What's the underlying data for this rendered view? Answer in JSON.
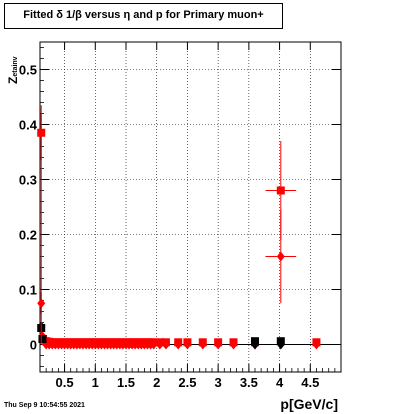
{
  "title": "Fitted δ 1/β versus η and p for Primary muon+",
  "datestamp": "Thu Sep  9 10:54:55 2021",
  "chart_data": {
    "type": "scatter",
    "title": "Fitted δ 1/β versus η and p for Primary muon+",
    "xlabel": "p[GeV/c]",
    "ylabel": "Z",
    "ylabel_subscript": "etainv",
    "xlim": [
      0.1,
      5.0
    ],
    "ylim": [
      -0.05,
      0.55
    ],
    "xticks": [
      0.5,
      1,
      1.5,
      2,
      2.5,
      3,
      3.5,
      4,
      4.5
    ],
    "xtick_labels": [
      "0.5",
      "1",
      "1.5",
      "2",
      "2.5",
      "3",
      "3.5",
      "4",
      "4.5"
    ],
    "yticks": [
      0,
      0.1,
      0.2,
      0.3,
      0.4,
      0.5
    ],
    "ytick_labels": [
      "0",
      "0.1",
      "0.2",
      "0.3",
      "0.4",
      "0.5"
    ],
    "grid": true,
    "colors": {
      "series_red": "#ff0000",
      "series_black": "#000000"
    },
    "series": [
      {
        "marker": "square",
        "color": "#ff0000",
        "points": [
          {
            "x": 0.12,
            "y": 0.385,
            "yerr": 0.05
          },
          {
            "x": 0.15,
            "y": 0.01
          },
          {
            "x": 0.2,
            "y": 0.006
          },
          {
            "x": 0.25,
            "y": 0.005
          },
          {
            "x": 0.3,
            "y": 0.004
          },
          {
            "x": 0.35,
            "y": 0.004
          },
          {
            "x": 0.4,
            "y": 0.004
          },
          {
            "x": 0.45,
            "y": 0.004
          },
          {
            "x": 0.5,
            "y": 0.004
          },
          {
            "x": 0.55,
            "y": 0.004
          },
          {
            "x": 0.6,
            "y": 0.004
          },
          {
            "x": 0.65,
            "y": 0.004
          },
          {
            "x": 0.7,
            "y": 0.004
          },
          {
            "x": 0.75,
            "y": 0.004
          },
          {
            "x": 0.8,
            "y": 0.004
          },
          {
            "x": 0.85,
            "y": 0.004
          },
          {
            "x": 0.9,
            "y": 0.004
          },
          {
            "x": 0.95,
            "y": 0.004
          },
          {
            "x": 1.0,
            "y": 0.004
          },
          {
            "x": 1.05,
            "y": 0.004
          },
          {
            "x": 1.1,
            "y": 0.004
          },
          {
            "x": 1.15,
            "y": 0.004
          },
          {
            "x": 1.2,
            "y": 0.004
          },
          {
            "x": 1.25,
            "y": 0.004
          },
          {
            "x": 1.3,
            "y": 0.004
          },
          {
            "x": 1.35,
            "y": 0.004
          },
          {
            "x": 1.4,
            "y": 0.004
          },
          {
            "x": 1.45,
            "y": 0.004
          },
          {
            "x": 1.5,
            "y": 0.004
          },
          {
            "x": 1.55,
            "y": 0.004
          },
          {
            "x": 1.6,
            "y": 0.004
          },
          {
            "x": 1.65,
            "y": 0.004
          },
          {
            "x": 1.7,
            "y": 0.004
          },
          {
            "x": 1.75,
            "y": 0.004
          },
          {
            "x": 1.8,
            "y": 0.004
          },
          {
            "x": 1.85,
            "y": 0.004
          },
          {
            "x": 1.9,
            "y": 0.004
          },
          {
            "x": 1.95,
            "y": 0.004
          },
          {
            "x": 2.05,
            "y": 0.004
          },
          {
            "x": 2.15,
            "y": 0.004
          },
          {
            "x": 2.35,
            "y": 0.004
          },
          {
            "x": 2.5,
            "y": 0.004
          },
          {
            "x": 2.75,
            "y": 0.004
          },
          {
            "x": 3.0,
            "y": 0.004
          },
          {
            "x": 3.25,
            "y": 0.004
          },
          {
            "x": 3.6,
            "y": 0.004
          },
          {
            "x": 4.02,
            "y": 0.28,
            "yerr": 0.09,
            "xerr": 0.25
          },
          {
            "x": 4.6,
            "y": 0.004
          }
        ]
      },
      {
        "marker": "diamond",
        "color": "#ff0000",
        "points": [
          {
            "x": 0.12,
            "y": 0.075,
            "yerr": 0.02
          },
          {
            "x": 0.14,
            "y": 0.015
          },
          {
            "x": 0.2,
            "y": 0.0
          },
          {
            "x": 0.25,
            "y": 0.0
          },
          {
            "x": 0.3,
            "y": 0.0
          },
          {
            "x": 0.35,
            "y": 0.0
          },
          {
            "x": 0.4,
            "y": 0.0
          },
          {
            "x": 0.45,
            "y": 0.0
          },
          {
            "x": 0.5,
            "y": 0.0
          },
          {
            "x": 0.55,
            "y": 0.0
          },
          {
            "x": 0.6,
            "y": 0.0
          },
          {
            "x": 0.65,
            "y": 0.0
          },
          {
            "x": 0.7,
            "y": 0.0
          },
          {
            "x": 0.75,
            "y": 0.0
          },
          {
            "x": 0.8,
            "y": 0.0
          },
          {
            "x": 0.85,
            "y": 0.0
          },
          {
            "x": 0.9,
            "y": 0.0
          },
          {
            "x": 0.95,
            "y": 0.0
          },
          {
            "x": 1.0,
            "y": 0.0
          },
          {
            "x": 1.05,
            "y": 0.0
          },
          {
            "x": 1.1,
            "y": 0.0
          },
          {
            "x": 1.15,
            "y": 0.0
          },
          {
            "x": 1.2,
            "y": 0.0
          },
          {
            "x": 1.25,
            "y": 0.0
          },
          {
            "x": 1.3,
            "y": 0.0
          },
          {
            "x": 1.35,
            "y": 0.0
          },
          {
            "x": 1.4,
            "y": 0.0
          },
          {
            "x": 1.45,
            "y": 0.0
          },
          {
            "x": 1.5,
            "y": 0.0
          },
          {
            "x": 1.55,
            "y": 0.0
          },
          {
            "x": 1.6,
            "y": 0.0
          },
          {
            "x": 1.65,
            "y": 0.0
          },
          {
            "x": 1.7,
            "y": 0.0
          },
          {
            "x": 1.75,
            "y": 0.0
          },
          {
            "x": 1.8,
            "y": 0.0
          },
          {
            "x": 1.85,
            "y": 0.0
          },
          {
            "x": 1.9,
            "y": 0.0
          },
          {
            "x": 1.95,
            "y": 0.0
          },
          {
            "x": 2.05,
            "y": 0.0
          },
          {
            "x": 2.15,
            "y": 0.0
          },
          {
            "x": 2.35,
            "y": 0.0
          },
          {
            "x": 2.5,
            "y": 0.0
          },
          {
            "x": 2.75,
            "y": 0.0
          },
          {
            "x": 3.0,
            "y": 0.0
          },
          {
            "x": 3.25,
            "y": 0.0
          },
          {
            "x": 3.6,
            "y": 0.0
          },
          {
            "x": 4.02,
            "y": 0.16,
            "yerr": 0.085,
            "xerr": 0.25
          },
          {
            "x": 4.6,
            "y": 0.0
          }
        ]
      },
      {
        "marker": "square",
        "color": "#000000",
        "points": [
          {
            "x": 0.12,
            "y": 0.03
          },
          {
            "x": 0.14,
            "y": 0.01
          },
          {
            "x": 3.6,
            "y": 0.006
          },
          {
            "x": 4.02,
            "y": 0.006
          }
        ]
      },
      {
        "marker": "diamond",
        "color": "#000000",
        "points": [
          {
            "x": 0.12,
            "y": 0.033
          },
          {
            "x": 3.6,
            "y": 0.0
          },
          {
            "x": 4.02,
            "y": 0.0
          }
        ]
      }
    ]
  }
}
